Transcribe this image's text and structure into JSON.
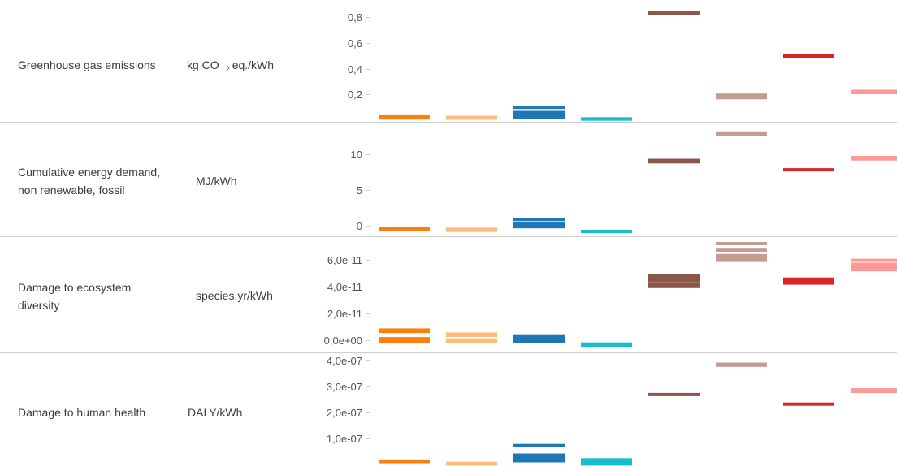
{
  "colors": {
    "grid": "#cfcfcf",
    "axis": "#cfcfcf",
    "text": "#3c3c3c",
    "tick_text": "#555555"
  },
  "series_colors": [
    "#ff7f0e",
    "#ffbb78",
    "#1f77b4",
    "#17becf",
    "#8c564b",
    "#c49c94",
    "#d62728",
    "#ff9896"
  ],
  "chart_data": [
    {
      "type": "scatter",
      "title": "Greenhouse gas emissions",
      "unit_base": "kg CO",
      "unit_sub": "2",
      "unit_rest": "eq./kWh",
      "ylim": [
        0,
        0.86
      ],
      "yticks": [
        {
          "value": 0.2,
          "label": "0,2"
        },
        {
          "value": 0.4,
          "label": "0,4"
        },
        {
          "value": 0.6,
          "label": "0,6"
        },
        {
          "value": 0.8,
          "label": "0,8"
        }
      ],
      "series": [
        {
          "values": [
            0.018,
            0.022,
            0.026
          ]
        },
        {
          "values": [
            0.015,
            0.02,
            0.022
          ]
        },
        {
          "values": [
            0.02,
            0.03,
            0.04,
            0.05,
            0.06,
            0.1
          ]
        },
        {
          "values": [
            0.008,
            0.011
          ]
        },
        {
          "values": [
            0.835,
            0.84
          ]
        },
        {
          "values": [
            0.175,
            0.185,
            0.195
          ]
        },
        {
          "values": [
            0.495,
            0.505
          ]
        },
        {
          "values": [
            0.215,
            0.225
          ]
        }
      ]
    },
    {
      "type": "scatter",
      "title": "Cumulative energy demand, non renewable, fossil",
      "title_lines": [
        "Cumulative energy demand,",
        "non renewable, fossil"
      ],
      "unit": "MJ/kWh",
      "ylim": [
        -1.2,
        14.0
      ],
      "yticks": [
        {
          "value": 0,
          "label": "0"
        },
        {
          "value": 5,
          "label": "5"
        },
        {
          "value": 10,
          "label": "10"
        }
      ],
      "series": [
        {
          "values": [
            -0.5,
            -0.3
          ]
        },
        {
          "values": [
            -0.6,
            -0.45
          ]
        },
        {
          "values": [
            -0.1,
            0.1,
            0.3,
            0.9
          ]
        },
        {
          "values": [
            -0.75
          ]
        },
        {
          "values": [
            8.9,
            9.1
          ]
        },
        {
          "values": [
            12.7,
            12.9
          ]
        },
        {
          "values": [
            7.8
          ]
        },
        {
          "values": [
            9.3,
            9.5
          ]
        }
      ]
    },
    {
      "type": "scatter",
      "title": "Damage to ecosystem diversity",
      "title_lines": [
        "Damage to ecosystem",
        "diversity"
      ],
      "unit": "species.yr/kWh",
      "ylim": [
        -8e-12,
        7.5e-11
      ],
      "yticks": [
        {
          "value": 0,
          "label": "0,0e+00"
        },
        {
          "value": 2e-11,
          "label": "2,0e-11"
        },
        {
          "value": 4e-11,
          "label": "4,0e-11"
        },
        {
          "value": 6e-11,
          "label": "6,0e-11"
        }
      ],
      "series": [
        {
          "values": [
            -1e-12,
            0,
            1e-12,
            6.5e-12,
            7.5e-12
          ]
        },
        {
          "values": [
            -1e-12,
            0,
            3.5e-12,
            4.5e-12
          ]
        },
        {
          "values": [
            -1e-12,
            0,
            1e-12,
            2.5e-12
          ]
        },
        {
          "values": [
            -4e-12,
            -3e-12
          ]
        },
        {
          "values": [
            4e-11,
            4.2e-11,
            4.45e-11,
            4.6e-11,
            4.8e-11
          ]
        },
        {
          "values": [
            5.95e-11,
            6.1e-11,
            6.3e-11,
            6.7e-11,
            7.2e-11
          ]
        },
        {
          "values": [
            4.25e-11,
            4.4e-11,
            4.55e-11
          ]
        },
        {
          "values": [
            5.25e-11,
            5.45e-11,
            5.65e-11,
            5.95e-11
          ]
        }
      ]
    },
    {
      "type": "scatter",
      "title": "Damage to human health",
      "unit": "DALY/kWh",
      "ylim": [
        0,
        4.2e-07
      ],
      "yticks": [
        {
          "value": 1e-07,
          "label": "1,0e-07"
        },
        {
          "value": 2e-07,
          "label": "2,0e-07"
        },
        {
          "value": 3e-07,
          "label": "3,0e-07"
        },
        {
          "value": 4e-07,
          "label": "4,0e-07"
        }
      ],
      "series": [
        {
          "values": [
            1.1e-08,
            1.3e-08
          ]
        },
        {
          "values": [
            2e-09,
            4e-09
          ]
        },
        {
          "values": [
            1.4e-08,
            2.2e-08,
            3e-08,
            3.6e-08,
            7.3e-08
          ]
        },
        {
          "values": [
            2e-09,
            6e-09,
            1e-08,
            1.4e-08,
            1.8e-08
          ]
        },
        {
          "values": [
            2.7e-07
          ]
        },
        {
          "values": [
            3.83e-07,
            3.87e-07
          ]
        },
        {
          "values": [
            2.33e-07
          ]
        },
        {
          "values": [
            2.82e-07,
            2.88e-07
          ]
        }
      ]
    }
  ]
}
